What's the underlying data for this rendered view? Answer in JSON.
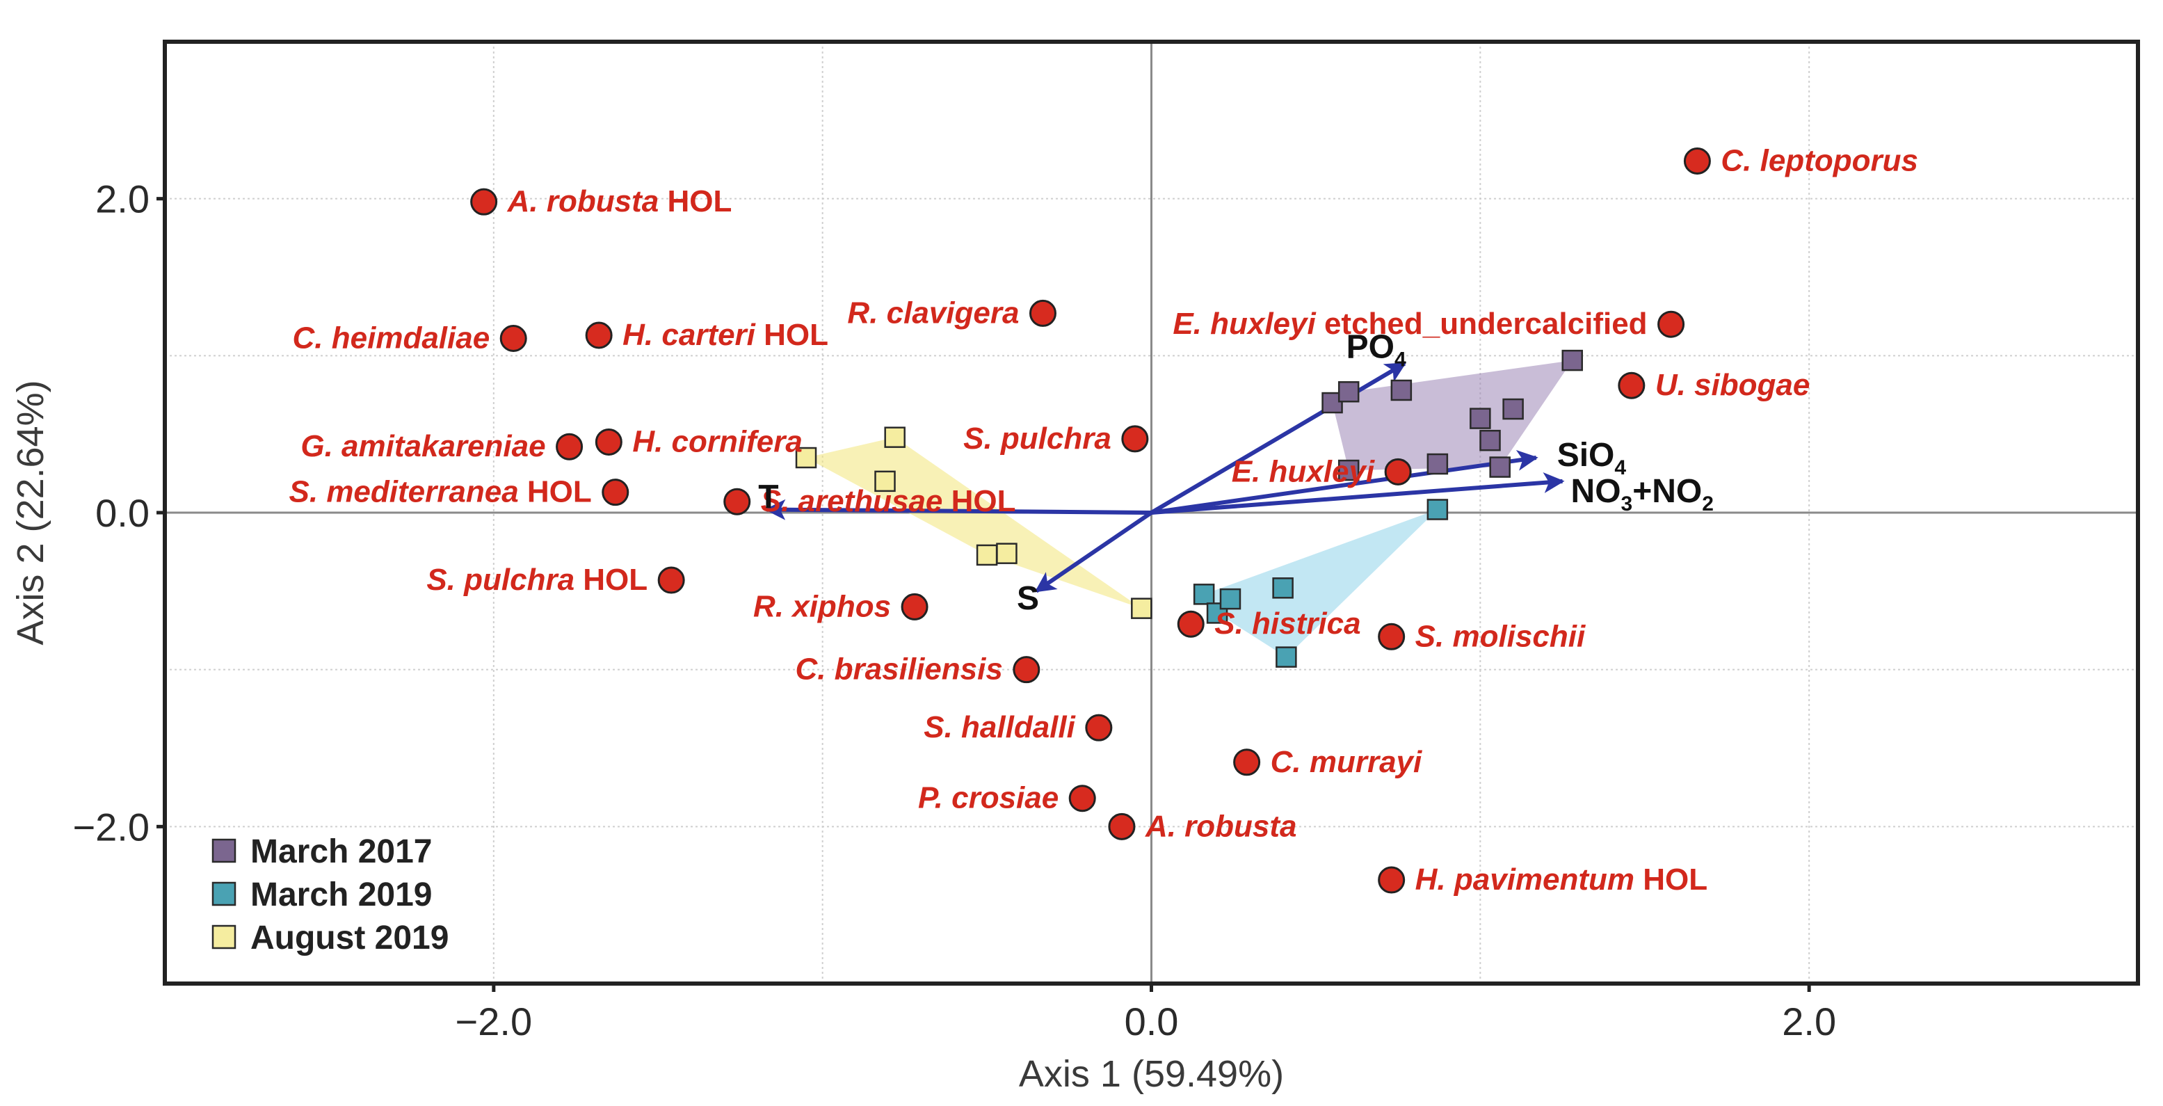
{
  "chart_data": {
    "type": "scatter",
    "xlabel": "Axis 1 (59.49%)",
    "ylabel": "Axis 2 (22.64%)",
    "xlim": [
      -3.0,
      3.0
    ],
    "ylim": [
      -3.0,
      3.0
    ],
    "xticks": [
      -2.0,
      0.0,
      2.0
    ],
    "yticks": [
      -2.0,
      0.0,
      2.0
    ],
    "xtick_labels": [
      "−2.0",
      "0.0",
      "2.0"
    ],
    "ytick_labels": [
      "−2.0",
      "0.0",
      "2.0"
    ],
    "minor_grid": [
      -3,
      -2,
      -1,
      0,
      1,
      2,
      3
    ],
    "grid": true,
    "species": [
      {
        "id": "a-robusta-hol",
        "name": "A. robusta",
        "suffix": " HOL",
        "x": -2.03,
        "y": 1.98,
        "anchor": "start"
      },
      {
        "id": "c-leptoporus",
        "name": "C. leptoporus",
        "suffix": "",
        "x": 1.66,
        "y": 2.24,
        "anchor": "start"
      },
      {
        "id": "c-heimdaliae",
        "name": "C. heimdaliae",
        "suffix": "",
        "x": -1.94,
        "y": 1.11,
        "anchor": "end"
      },
      {
        "id": "h-carteri-hol",
        "name": "H. carteri",
        "suffix": " HOL",
        "x": -1.68,
        "y": 1.13,
        "anchor": "start"
      },
      {
        "id": "r-clavigera",
        "name": "R. clavigera",
        "suffix": "",
        "x": -0.33,
        "y": 1.27,
        "anchor": "end"
      },
      {
        "id": "e-huxleyi-etched",
        "name": "E. huxleyi",
        "suffix": " etched_undercalcified",
        "x": 1.58,
        "y": 1.2,
        "anchor": "end"
      },
      {
        "id": "u-sibogae",
        "name": "U. sibogae",
        "suffix": "",
        "x": 1.46,
        "y": 0.81,
        "anchor": "start"
      },
      {
        "id": "g-amitakareniae",
        "name": "G. amitakareniae",
        "suffix": "",
        "x": -1.77,
        "y": 0.42,
        "anchor": "end"
      },
      {
        "id": "h-cornifera",
        "name": "H. cornifera",
        "suffix": "",
        "x": -1.65,
        "y": 0.45,
        "anchor": "start"
      },
      {
        "id": "s-pulchra",
        "name": "S. pulchra",
        "suffix": "",
        "x": -0.05,
        "y": 0.47,
        "anchor": "end"
      },
      {
        "id": "e-huxleyi",
        "name": "E. huxleyi",
        "suffix": "",
        "x": 0.75,
        "y": 0.26,
        "anchor": "end"
      },
      {
        "id": "s-mediterranea-hol",
        "name": "S. mediterranea",
        "suffix": " HOL",
        "x": -1.63,
        "y": 0.13,
        "anchor": "end"
      },
      {
        "id": "s-arethusae-hol",
        "name": "S. arethusae",
        "suffix": " HOL",
        "x": -1.26,
        "y": 0.07,
        "anchor": "start"
      },
      {
        "id": "s-pulchra-hol",
        "name": "S. pulchra",
        "suffix": " HOL",
        "x": -1.46,
        "y": -0.43,
        "anchor": "end"
      },
      {
        "id": "r-xiphos",
        "name": "R. xiphos",
        "suffix": "",
        "x": -0.72,
        "y": -0.6,
        "anchor": "end"
      },
      {
        "id": "s-histrica",
        "name": "S. histrica",
        "suffix": "",
        "x": 0.12,
        "y": -0.71,
        "anchor": "start"
      },
      {
        "id": "s-molischii",
        "name": "S. molischii",
        "suffix": "",
        "x": 0.73,
        "y": -0.79,
        "anchor": "start"
      },
      {
        "id": "c-brasiliensis",
        "name": "C. brasiliensis",
        "suffix": "",
        "x": -0.38,
        "y": -1.0,
        "anchor": "end"
      },
      {
        "id": "s-halldalli",
        "name": "S. halldalli",
        "suffix": "",
        "x": -0.16,
        "y": -1.37,
        "anchor": "end"
      },
      {
        "id": "c-murrayi",
        "name": "C. murrayi",
        "suffix": "",
        "x": 0.29,
        "y": -1.59,
        "anchor": "start"
      },
      {
        "id": "p-crosiae",
        "name": "P. crosiae",
        "suffix": "",
        "x": -0.21,
        "y": -1.82,
        "anchor": "end"
      },
      {
        "id": "a-robusta",
        "name": "A. robusta",
        "suffix": "",
        "x": -0.09,
        "y": -2.0,
        "anchor": "start"
      },
      {
        "id": "h-pavimentum-hol",
        "name": "H. pavimentum",
        "suffix": " HOL",
        "x": 0.73,
        "y": -2.34,
        "anchor": "start"
      }
    ],
    "vectors": [
      {
        "id": "t",
        "label": "T",
        "sub": "",
        "after": "",
        "x": -1.17,
        "y": 0.02
      },
      {
        "id": "s",
        "label": "S",
        "sub": "",
        "after": "",
        "x": -0.35,
        "y": -0.5
      },
      {
        "id": "po4",
        "label": "PO",
        "sub": "4",
        "after": "",
        "x": 0.77,
        "y": 0.95
      },
      {
        "id": "sio4",
        "label": "SiO",
        "sub": "4",
        "after": "",
        "x": 1.17,
        "y": 0.35
      },
      {
        "id": "no3no2",
        "label": "NO",
        "sub": "3",
        "after": "+NO",
        "sub2": "2",
        "x": 1.25,
        "y": 0.2
      }
    ],
    "series": [
      {
        "name": "March 2017",
        "color": "#7b668f",
        "hull_color": "#9c86b6",
        "points": [
          [
            0.55,
            0.7
          ],
          [
            0.6,
            0.77
          ],
          [
            0.76,
            0.78
          ],
          [
            1.0,
            0.6
          ],
          [
            1.03,
            0.46
          ],
          [
            1.1,
            0.66
          ],
          [
            1.28,
            0.97
          ],
          [
            0.6,
            0.27
          ],
          [
            0.87,
            0.31
          ],
          [
            1.06,
            0.29
          ]
        ],
        "hull": [
          [
            0.55,
            0.7
          ],
          [
            0.6,
            0.77
          ],
          [
            1.28,
            0.97
          ],
          [
            1.06,
            0.29
          ],
          [
            0.6,
            0.27
          ]
        ]
      },
      {
        "name": "March 2019",
        "color": "#4aa2b3",
        "hull_color": "#8fd3ea",
        "points": [
          [
            0.16,
            -0.52
          ],
          [
            0.2,
            -0.64
          ],
          [
            0.24,
            -0.55
          ],
          [
            0.4,
            -0.48
          ],
          [
            0.41,
            -0.92
          ],
          [
            0.87,
            0.02
          ]
        ],
        "hull": [
          [
            0.16,
            -0.52
          ],
          [
            0.87,
            0.02
          ],
          [
            0.41,
            -0.92
          ],
          [
            0.2,
            -0.64
          ]
        ]
      },
      {
        "name": "August 2019",
        "color": "#f5eda0",
        "hull_color": "#f3e57a",
        "points": [
          [
            -1.05,
            0.35
          ],
          [
            -0.78,
            0.48
          ],
          [
            -0.81,
            0.2
          ],
          [
            -0.5,
            -0.27
          ],
          [
            -0.44,
            -0.26
          ],
          [
            -0.03,
            -0.61
          ]
        ],
        "hull": [
          [
            -1.05,
            0.35
          ],
          [
            -0.78,
            0.48
          ],
          [
            -0.03,
            -0.61
          ],
          [
            -0.5,
            -0.27
          ]
        ]
      }
    ],
    "legend": {
      "position": "bottom-left",
      "entries": [
        "March 2017",
        "March 2019",
        "August 2019"
      ]
    },
    "colors": {
      "species_dot": "#d72b1f",
      "species_label": "#d2281c",
      "vector": "#2b35a5",
      "vector_label": "#111111",
      "frame": "#222222",
      "grid": "#cfcfcf",
      "zero_line": "#8a8a8a"
    }
  }
}
